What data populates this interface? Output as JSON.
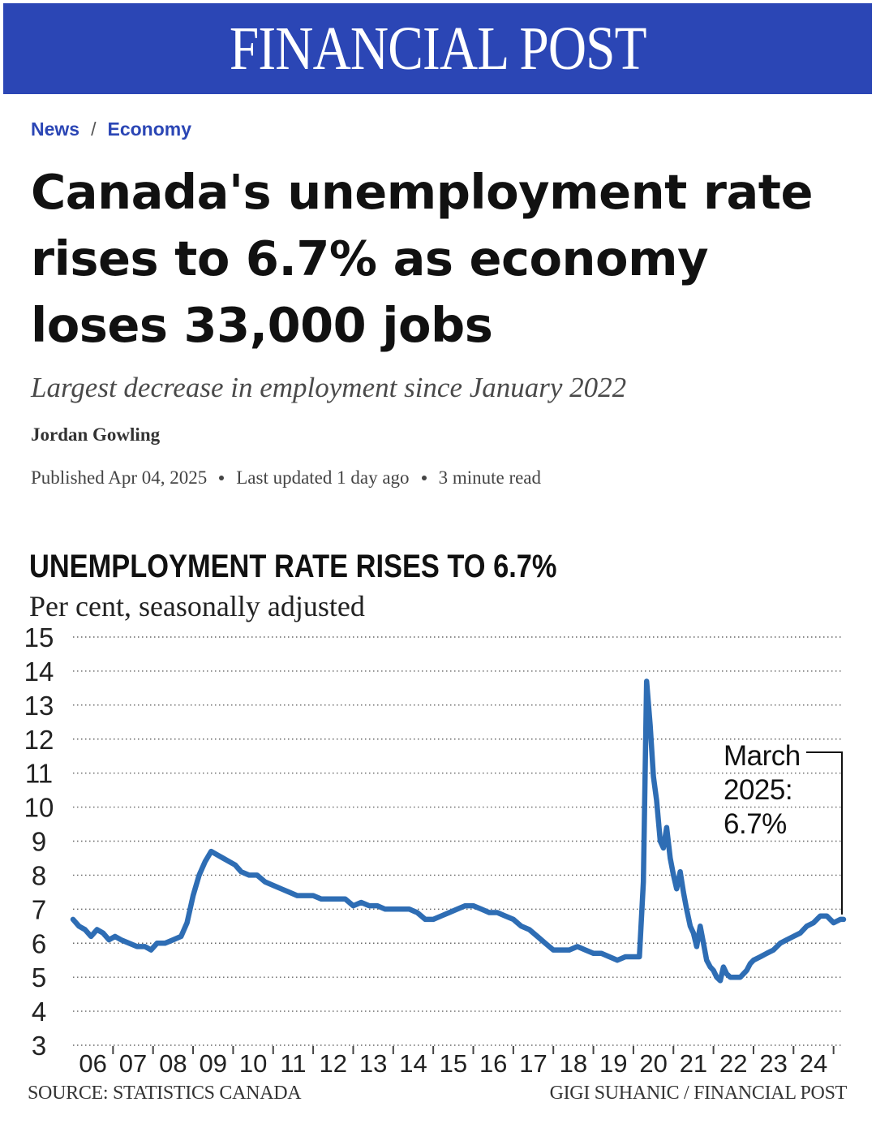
{
  "masthead": {
    "title": "FINANCIAL POST",
    "brand_color": "#2b46b5"
  },
  "breadcrumb": {
    "items": [
      "News",
      "Economy"
    ],
    "separator": "/"
  },
  "article": {
    "headline": "Canada's unemployment rate rises to 6.7% as economy loses 33,000 jobs",
    "subheadline": "Largest decrease in employment since January 2022",
    "author": "Jordan Gowling",
    "published": "Published Apr 04, 2025",
    "updated": "Last updated 1 day ago",
    "read_time": "3 minute read"
  },
  "chart_data": {
    "type": "line",
    "title": "UNEMPLOYMENT RATE RISES TO 6.7%",
    "subtitle": "Per cent, seasonally adjusted",
    "xlabel": "",
    "ylabel": "",
    "xlim": [
      2006.0,
      2025.25
    ],
    "ylim": [
      3,
      15
    ],
    "y_ticks": [
      3,
      4,
      5,
      6,
      7,
      8,
      9,
      10,
      11,
      12,
      13,
      14,
      15
    ],
    "x_tick_labels": [
      "06",
      "07",
      "08",
      "09",
      "10",
      "11",
      "12",
      "13",
      "14",
      "15",
      "16",
      "17",
      "18",
      "19",
      "20",
      "21",
      "22",
      "23",
      "24"
    ],
    "grid": true,
    "line_color": "#2e6db4",
    "series": [
      {
        "name": "Unemployment rate",
        "x": [
          2006.0,
          2006.15,
          2006.3,
          2006.45,
          2006.6,
          2006.75,
          2006.9,
          2007.05,
          2007.2,
          2007.4,
          2007.6,
          2007.8,
          2007.95,
          2008.1,
          2008.3,
          2008.5,
          2008.7,
          2008.85,
          2009.0,
          2009.15,
          2009.3,
          2009.45,
          2009.6,
          2009.75,
          2009.9,
          2010.05,
          2010.2,
          2010.4,
          2010.6,
          2010.8,
          2011.0,
          2011.2,
          2011.4,
          2011.6,
          2011.8,
          2012.0,
          2012.2,
          2012.4,
          2012.6,
          2012.8,
          2013.0,
          2013.2,
          2013.4,
          2013.6,
          2013.8,
          2014.0,
          2014.2,
          2014.4,
          2014.6,
          2014.8,
          2015.0,
          2015.2,
          2015.4,
          2015.6,
          2015.8,
          2016.0,
          2016.2,
          2016.4,
          2016.6,
          2016.8,
          2017.0,
          2017.2,
          2017.4,
          2017.6,
          2017.8,
          2018.0,
          2018.2,
          2018.4,
          2018.6,
          2018.8,
          2019.0,
          2019.2,
          2019.4,
          2019.6,
          2019.8,
          2020.0,
          2020.15,
          2020.25,
          2020.33,
          2020.42,
          2020.5,
          2020.58,
          2020.67,
          2020.75,
          2020.83,
          2020.92,
          2021.0,
          2021.08,
          2021.17,
          2021.25,
          2021.33,
          2021.42,
          2021.5,
          2021.58,
          2021.67,
          2021.75,
          2021.83,
          2021.92,
          2022.0,
          2022.08,
          2022.17,
          2022.25,
          2022.33,
          2022.42,
          2022.5,
          2022.58,
          2022.67,
          2022.75,
          2022.83,
          2022.92,
          2023.0,
          2023.17,
          2023.33,
          2023.5,
          2023.67,
          2023.83,
          2024.0,
          2024.17,
          2024.33,
          2024.5,
          2024.67,
          2024.83,
          2025.0,
          2025.17,
          2025.25
        ],
        "values": [
          6.7,
          6.5,
          6.4,
          6.2,
          6.4,
          6.3,
          6.1,
          6.2,
          6.1,
          6.0,
          5.9,
          5.9,
          5.8,
          6.0,
          6.0,
          6.1,
          6.2,
          6.6,
          7.4,
          8.0,
          8.4,
          8.7,
          8.6,
          8.5,
          8.4,
          8.3,
          8.1,
          8.0,
          8.0,
          7.8,
          7.7,
          7.6,
          7.5,
          7.4,
          7.4,
          7.4,
          7.3,
          7.3,
          7.3,
          7.3,
          7.1,
          7.2,
          7.1,
          7.1,
          7.0,
          7.0,
          7.0,
          7.0,
          6.9,
          6.7,
          6.7,
          6.8,
          6.9,
          7.0,
          7.1,
          7.1,
          7.0,
          6.9,
          6.9,
          6.8,
          6.7,
          6.5,
          6.4,
          6.2,
          6.0,
          5.8,
          5.8,
          5.8,
          5.9,
          5.8,
          5.7,
          5.7,
          5.6,
          5.5,
          5.6,
          5.6,
          5.6,
          7.8,
          13.7,
          12.4,
          10.9,
          10.2,
          9.0,
          8.8,
          9.4,
          8.5,
          8.0,
          7.6,
          8.1,
          7.5,
          7.0,
          6.5,
          6.3,
          5.9,
          6.5,
          6.0,
          5.5,
          5.3,
          5.2,
          5.0,
          4.9,
          5.3,
          5.1,
          5.0,
          5.0,
          5.0,
          5.0,
          5.1,
          5.2,
          5.4,
          5.5,
          5.6,
          5.7,
          5.8,
          6.0,
          6.1,
          6.2,
          6.3,
          6.5,
          6.6,
          6.8,
          6.8,
          6.6,
          6.7,
          6.7
        ]
      }
    ],
    "annotation": {
      "text_lines": [
        "March",
        "2025:",
        "6.7%"
      ]
    }
  },
  "footer": {
    "source": "SOURCE: STATISTICS CANADA",
    "credit": "GIGI SUHANIC / FINANCIAL POST"
  }
}
